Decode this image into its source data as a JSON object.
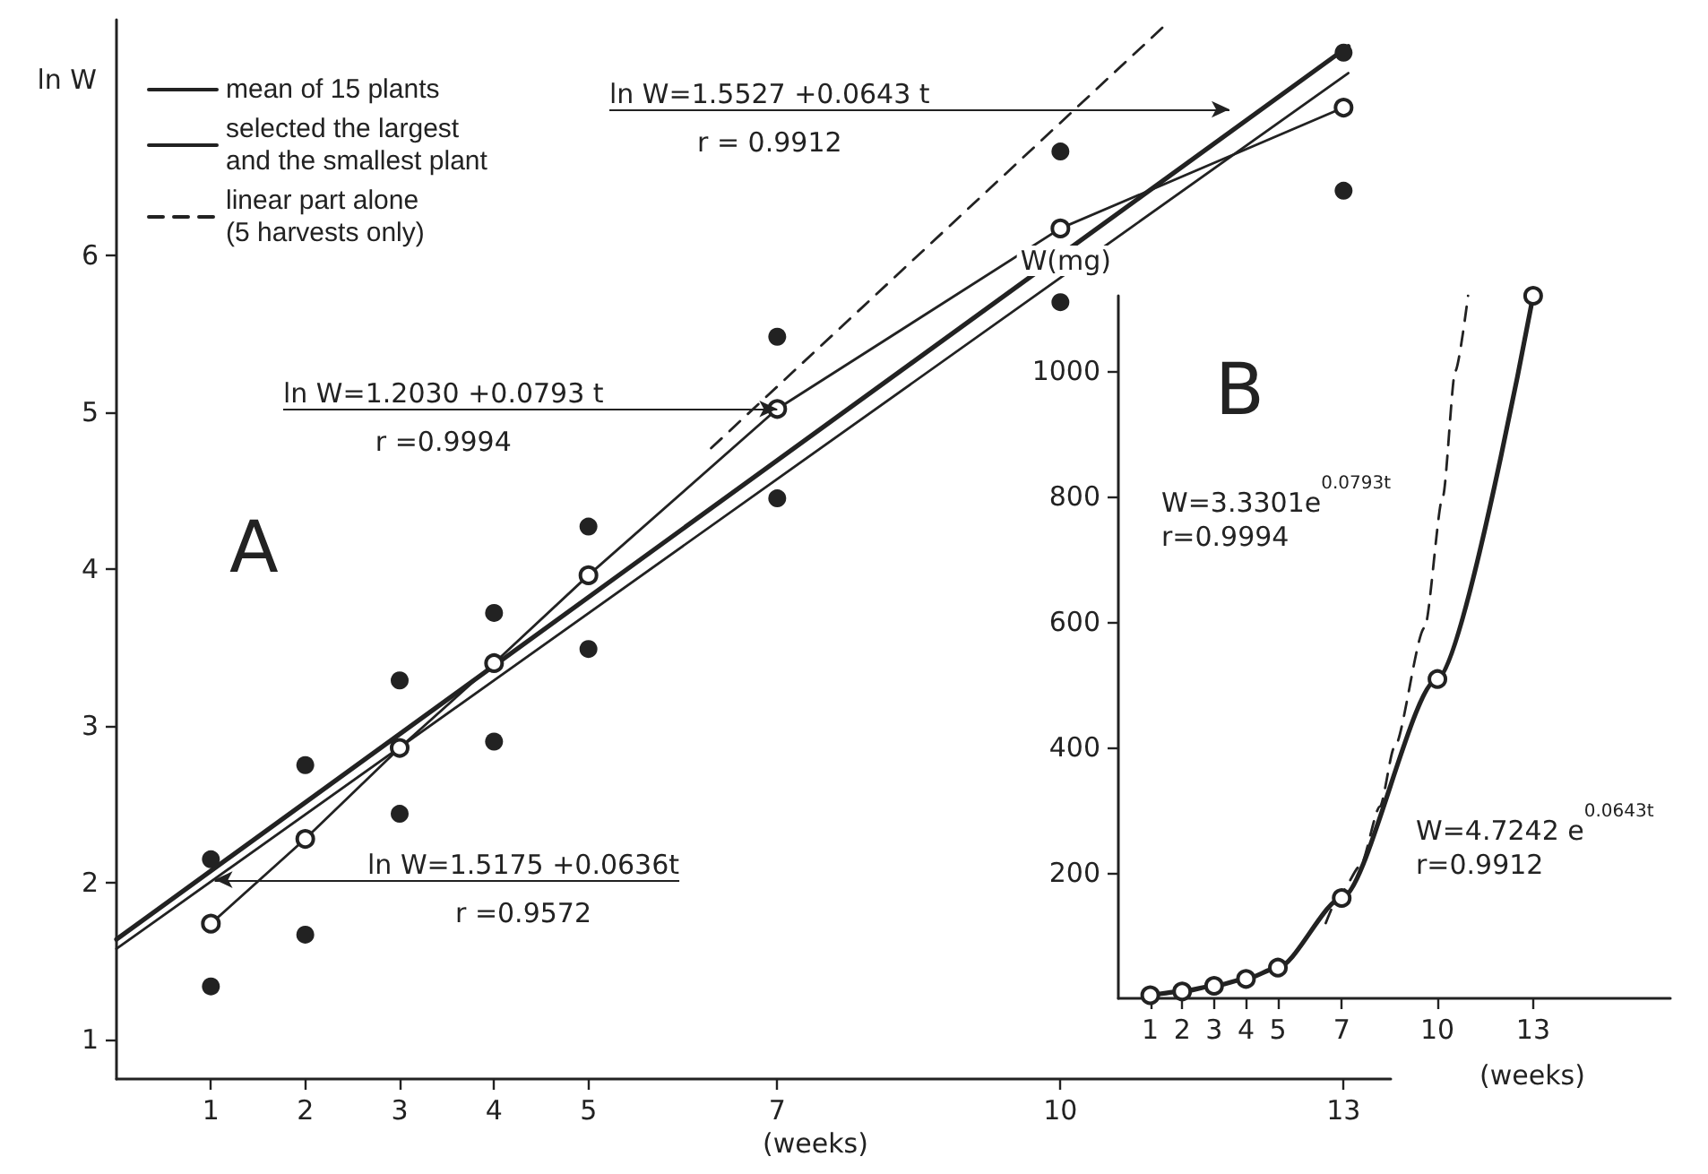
{
  "chart_data": [
    {
      "type": "line",
      "xlabel": "(weeks)",
      "ylabel": "ln W",
      "xlim": [
        0,
        13.5
      ],
      "ylim": [
        0.75,
        7.5
      ],
      "xticks": [
        1,
        2,
        3,
        4,
        5,
        7,
        10,
        13
      ],
      "yticks": [
        1,
        2,
        3,
        4,
        5,
        6
      ],
      "grid": false,
      "legend": "top left",
      "series": [
        {
          "name": "mean of 15 plants",
          "color": "#222222",
          "x": [
            0,
            13.05
          ],
          "values": [
            1.64,
            7.33
          ],
          "marker": "none",
          "line_style": "solid"
        },
        {
          "name": "selected the largest and the smallest plant",
          "color": "#222222",
          "x": [
            0,
            13.05
          ],
          "values": [
            1.58,
            7.16
          ],
          "marker": "none",
          "line_style": "solid"
        },
        {
          "name": "linear part alone (5 harvests only)",
          "color": "#222222",
          "x": [
            6.3,
            11.1
          ],
          "values": [
            4.77,
            7.46
          ],
          "marker": "none",
          "line_style": "dashed"
        },
        {
          "color": "#222222",
          "x": [
            1,
            2,
            3,
            4,
            5,
            7,
            10,
            13
          ],
          "values": [
            1.74,
            2.28,
            2.86,
            3.4,
            3.96,
            5.02,
            6.17,
            6.94
          ],
          "marker": "circle",
          "line_style": "solid"
        },
        {
          "type": "scatter",
          "color": "#222222",
          "x": [
            1,
            1,
            2,
            2,
            3,
            3,
            4,
            4,
            5,
            5,
            7,
            7,
            10,
            10,
            13,
            13
          ],
          "values": [
            2.15,
            1.34,
            2.75,
            1.67,
            3.29,
            2.44,
            3.72,
            2.9,
            4.27,
            3.49,
            5.48,
            4.45,
            6.66,
            5.7,
            7.29,
            6.41
          ],
          "marker": "circle"
        }
      ],
      "annotations": [
        "A",
        "ln W=1.5527 +0.0643 t\nr = 0.9912",
        {
          "text": "ln W=1.2030 +0.0793 t\nr =0.9994",
          "x": 7,
          "y": 5.02
        },
        {
          "text": "ln W=1.5175 +0.0636t\nr =0.9572",
          "x": 1.04,
          "y": 2.02
        }
      ]
    },
    {
      "type": "line",
      "xlabel": "(weeks)",
      "ylabel": "W(mg)",
      "xlim": [
        0,
        17.3
      ],
      "ylim": [
        0,
        1120
      ],
      "xticks": [
        1,
        2,
        3,
        4,
        5,
        7,
        10,
        13
      ],
      "yticks": [
        200,
        400,
        600,
        800,
        1000
      ],
      "grid": false,
      "series": [
        {
          "color": "#222222",
          "x": [
            1,
            2,
            3,
            4,
            5,
            7,
            10,
            13
          ],
          "values": [
            5,
            11,
            20,
            31,
            49,
            160,
            509,
            1120
          ],
          "marker": "circle",
          "line_style": "solid"
        },
        {
          "color": "#222222",
          "x": [
            6.5,
            7,
            7.58,
            8.2,
            8.65,
            9.6,
            10.17,
            10.56,
            10.96
          ],
          "values": [
            120,
            170,
            211,
            306,
            400,
            591,
            800,
            1000,
            1120
          ],
          "marker": "none",
          "line_style": "dashed"
        }
      ],
      "annotations": [
        "B",
        "W=3.3301e$^{0.0793t}$\nr=0.9994",
        "W=4.7242 e$^{0.0643t}$\nr=0.9912"
      ]
    }
  ]
}
